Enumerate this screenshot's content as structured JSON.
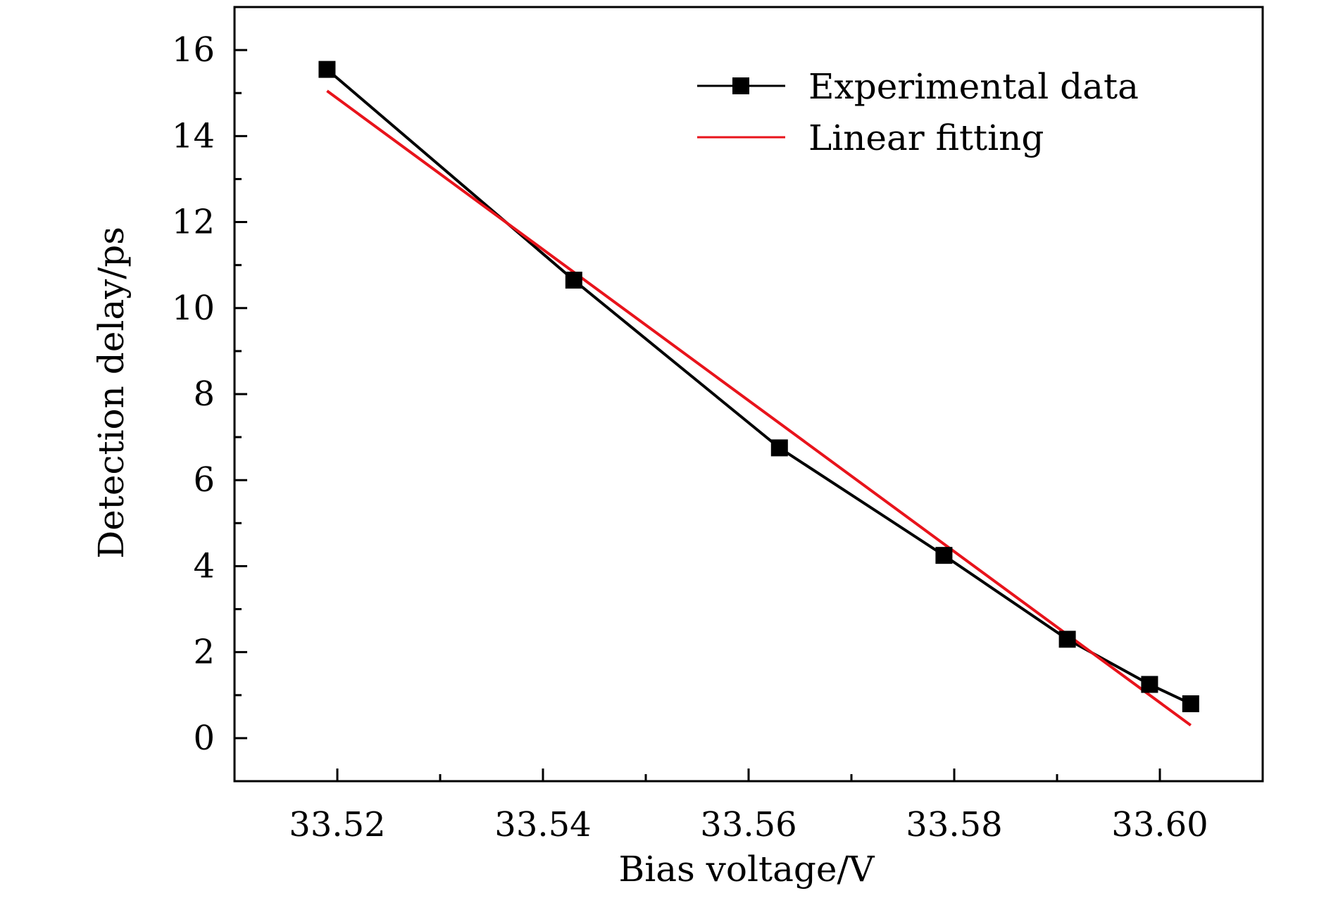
{
  "chart_data": {
    "type": "line",
    "title": "",
    "xlabel": "Bias voltage/V",
    "ylabel": "Detection delay/ps",
    "xlim": [
      33.51,
      33.61
    ],
    "ylim": [
      -1,
      17
    ],
    "xticks": [
      33.52,
      33.54,
      33.56,
      33.58,
      33.6
    ],
    "xtick_labels": [
      "33.52",
      "33.54",
      "33.56",
      "33.58",
      "33.60"
    ],
    "yticks": [
      0,
      2,
      4,
      6,
      8,
      10,
      12,
      14,
      16
    ],
    "ytick_labels": [
      "0",
      "2",
      "4",
      "6",
      "8",
      "10",
      "12",
      "14",
      "16"
    ],
    "legend_position": "top-right",
    "series": [
      {
        "name": "Experimental data",
        "style": "line-square-markers",
        "color": "#000000",
        "x": [
          33.519,
          33.543,
          33.563,
          33.579,
          33.591,
          33.599,
          33.603
        ],
        "y": [
          15.55,
          10.65,
          6.75,
          4.25,
          2.3,
          1.25,
          0.8
        ]
      },
      {
        "name": "Linear fitting",
        "style": "line",
        "color": "#e8131b",
        "x": [
          33.519,
          33.603
        ],
        "y": [
          15.05,
          0.3
        ]
      }
    ]
  }
}
